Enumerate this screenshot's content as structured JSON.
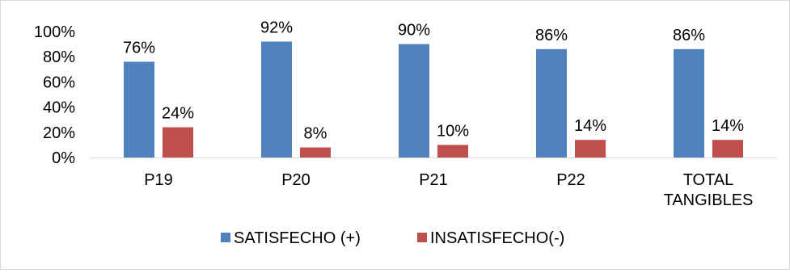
{
  "chart_data": {
    "type": "bar",
    "categories": [
      "P19",
      "P20",
      "P21",
      "P22",
      "TOTAL TANGIBLES"
    ],
    "series": [
      {
        "name": "SATISFECHO (+)",
        "values": [
          76,
          92,
          90,
          86,
          86
        ],
        "color": "#4f81bd"
      },
      {
        "name": "INSATISFECHO(-)",
        "values": [
          24,
          8,
          10,
          14,
          14
        ],
        "color": "#c0504d"
      }
    ],
    "data_labels": [
      [
        "76%",
        "92%",
        "90%",
        "86%",
        "86%"
      ],
      [
        "24%",
        "8%",
        "10%",
        "14%",
        "14%"
      ]
    ],
    "yticks": [
      "0%",
      "20%",
      "40%",
      "60%",
      "80%",
      "100%"
    ],
    "ylim": [
      0,
      100
    ],
    "grid": false,
    "legend_position": "bottom"
  }
}
